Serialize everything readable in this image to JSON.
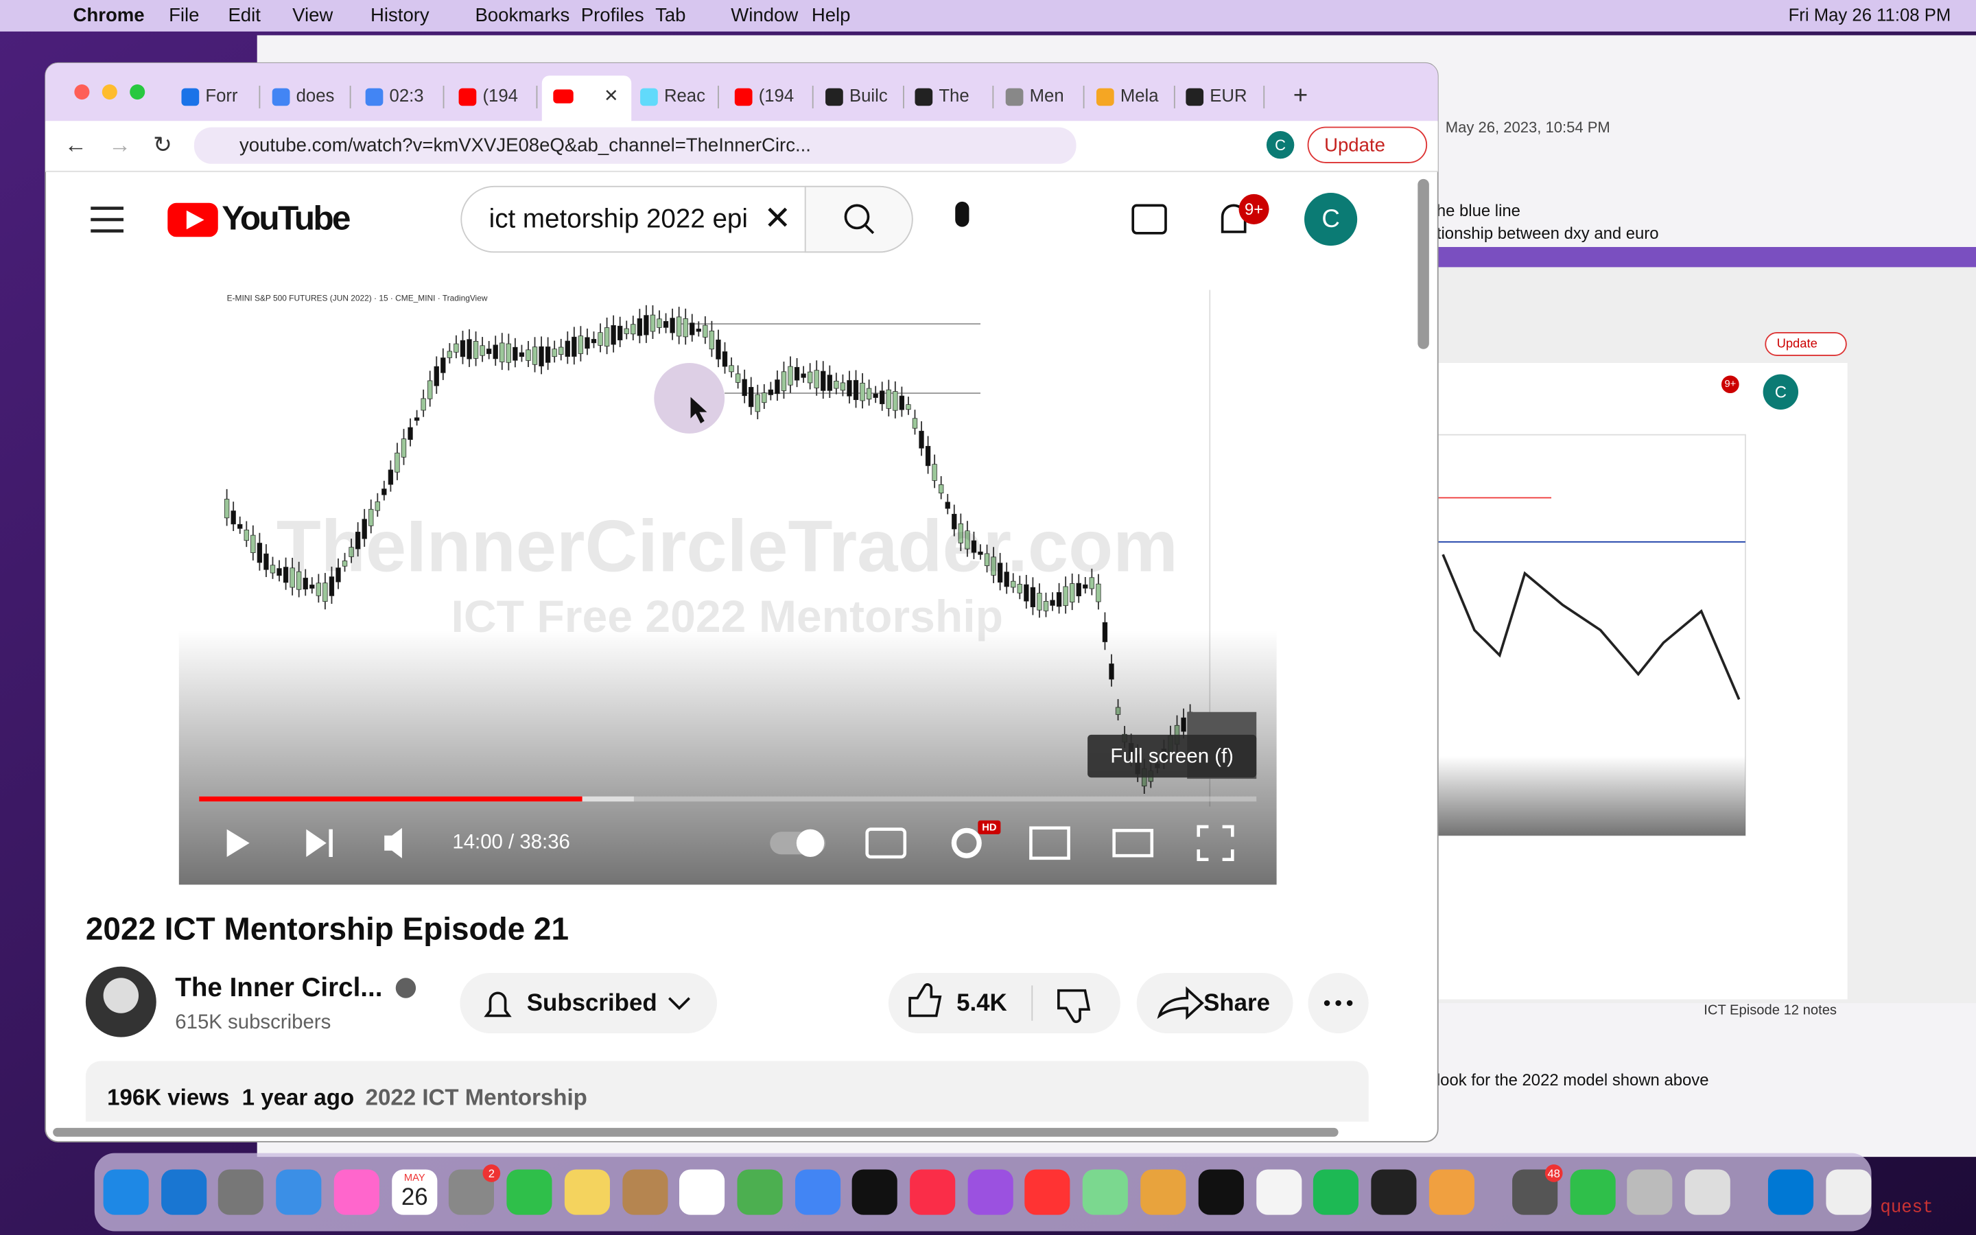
{
  "menubar": {
    "app": "Chrome",
    "items": [
      "File",
      "Edit",
      "View",
      "History",
      "Bookmarks",
      "Profiles",
      "Tab",
      "Window",
      "Help"
    ],
    "clock": "Fri May 26  11:08 PM"
  },
  "browser": {
    "tabs": [
      "Forr",
      "does",
      "02:3",
      "(194",
      "Reac",
      "(194",
      "Builc",
      "The",
      "Men",
      "Mela",
      "EUR"
    ],
    "url": "youtube.com/watch?v=kmVXVJE08eQ&ab_channel=TheInnerCirc...",
    "profile": "C",
    "update": "Update"
  },
  "youtube": {
    "logo": "YouTube",
    "search": "ict metorship 2022 epi",
    "notifications": "9+",
    "avatar": "C",
    "player": {
      "chart_header": "E-MINI S&P 500 FUTURES (JUN 2022) · 15 · CME_MINI · TradingView",
      "watermark": "TheInnerCircleTrader.com",
      "subtitle": "ICT Free 2022 Mentorship",
      "tooltip": "Full screen (f)",
      "time": "14:00 / 38:36",
      "hd": "HD"
    },
    "title": "2022 ICT Mentorship Episode 21",
    "channel": "The Inner Circl...",
    "subscribers": "615K subscribers",
    "subscribe": "Subscribed",
    "likes": "5.4K",
    "share": "Share",
    "views": "196K views",
    "age": "1 year ago",
    "playlist": "2022 ICT Mentorship"
  },
  "background_window": {
    "date": "May 26, 2023, 10:54 PM",
    "lines": [
      "he blue line",
      "tionship between dxy and euro"
    ],
    "footer": "look for the 2022 model shown above",
    "notes_title": "ICT Episode 12 notes",
    "inner_update": "Update",
    "inner_badge": "9+",
    "inner_avatar": "C"
  },
  "dock": {
    "month": "MAY",
    "day": "26",
    "badges": [
      "2",
      "48"
    ],
    "edge_text": "quest"
  }
}
